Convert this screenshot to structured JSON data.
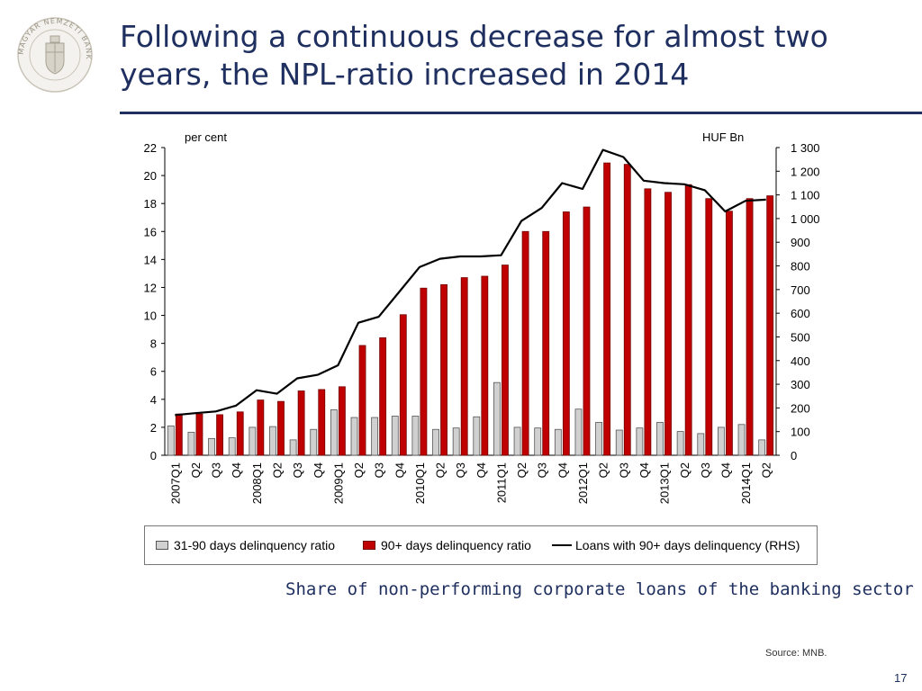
{
  "slide": {
    "title_lines": [
      "Following a continuous decrease for almost two",
      "years, the NPL-ratio increased in 2014"
    ],
    "caption": "Share of non-performing corporate loans of the banking sector",
    "source": "Source: MNB.",
    "page_number": "17",
    "colors": {
      "title": "#1f3060",
      "bar_dark": "#c00000",
      "bar_light": "#d0d0d0"
    },
    "logo": {
      "name": "MAGYAR NEMZETI BANK",
      "icon": "mnb-seal-icon"
    }
  },
  "chart_data": {
    "type": "bar",
    "left_axis_label": "per cent",
    "right_axis_label": "HUF Bn",
    "ylim_left": [
      0,
      22
    ],
    "ylim_right": [
      0,
      1300
    ],
    "left_ticks": [
      "0",
      "2",
      "4",
      "6",
      "8",
      "10",
      "12",
      "14",
      "16",
      "18",
      "20",
      "22"
    ],
    "right_ticks": [
      "0",
      "100",
      "200",
      "300",
      "400",
      "500",
      "600",
      "700",
      "800",
      "900",
      "1 000",
      "1 100",
      "1 200",
      "1 300"
    ],
    "categories": [
      "2007Q1",
      "Q2",
      "Q3",
      "Q4",
      "2008Q1",
      "Q2",
      "Q3",
      "Q4",
      "2009Q1",
      "Q2",
      "Q3",
      "Q4",
      "2010Q1",
      "Q2",
      "Q3",
      "Q4",
      "2011Q1",
      "Q2",
      "Q3",
      "Q4",
      "2012Q1",
      "Q2",
      "Q3",
      "Q4",
      "2013Q1",
      "Q2",
      "Q3",
      "Q4",
      "2014Q1",
      "Q2"
    ],
    "series": [
      {
        "name": "31-90 days delinquency ratio",
        "type": "bar",
        "axis": "left",
        "color": "#d0d0d0",
        "values": [
          2.1,
          1.65,
          1.2,
          1.25,
          2.0,
          2.05,
          1.1,
          1.85,
          3.25,
          2.7,
          2.7,
          2.8,
          2.8,
          1.85,
          1.95,
          2.75,
          5.2,
          2.0,
          1.95,
          1.85,
          3.3,
          2.35,
          1.8,
          1.95,
          2.35,
          1.7,
          1.55,
          2.0,
          2.2,
          1.1
        ]
      },
      {
        "name": "90+ days delinquency ratio",
        "type": "bar",
        "axis": "left",
        "color": "#c00000",
        "values": [
          2.95,
          2.95,
          2.9,
          3.1,
          3.95,
          3.85,
          4.6,
          4.7,
          4.9,
          7.85,
          8.4,
          10.05,
          11.95,
          12.2,
          12.7,
          12.8,
          13.6,
          16.0,
          16.0,
          17.4,
          17.75,
          20.9,
          20.8,
          19.05,
          18.8,
          19.35,
          18.35,
          17.45,
          18.35,
          18.55
        ]
      },
      {
        "name": "Loans with 90+ days delinquency (RHS)",
        "type": "line",
        "axis": "right",
        "color": "#000000",
        "values": [
          170,
          178,
          185,
          210,
          275,
          260,
          325,
          340,
          380,
          560,
          585,
          690,
          795,
          830,
          840,
          840,
          845,
          990,
          1045,
          1150,
          1125,
          1290,
          1260,
          1160,
          1150,
          1145,
          1120,
          1030,
          1075,
          1080
        ]
      }
    ],
    "legend_position": "bottom",
    "grid": false
  }
}
